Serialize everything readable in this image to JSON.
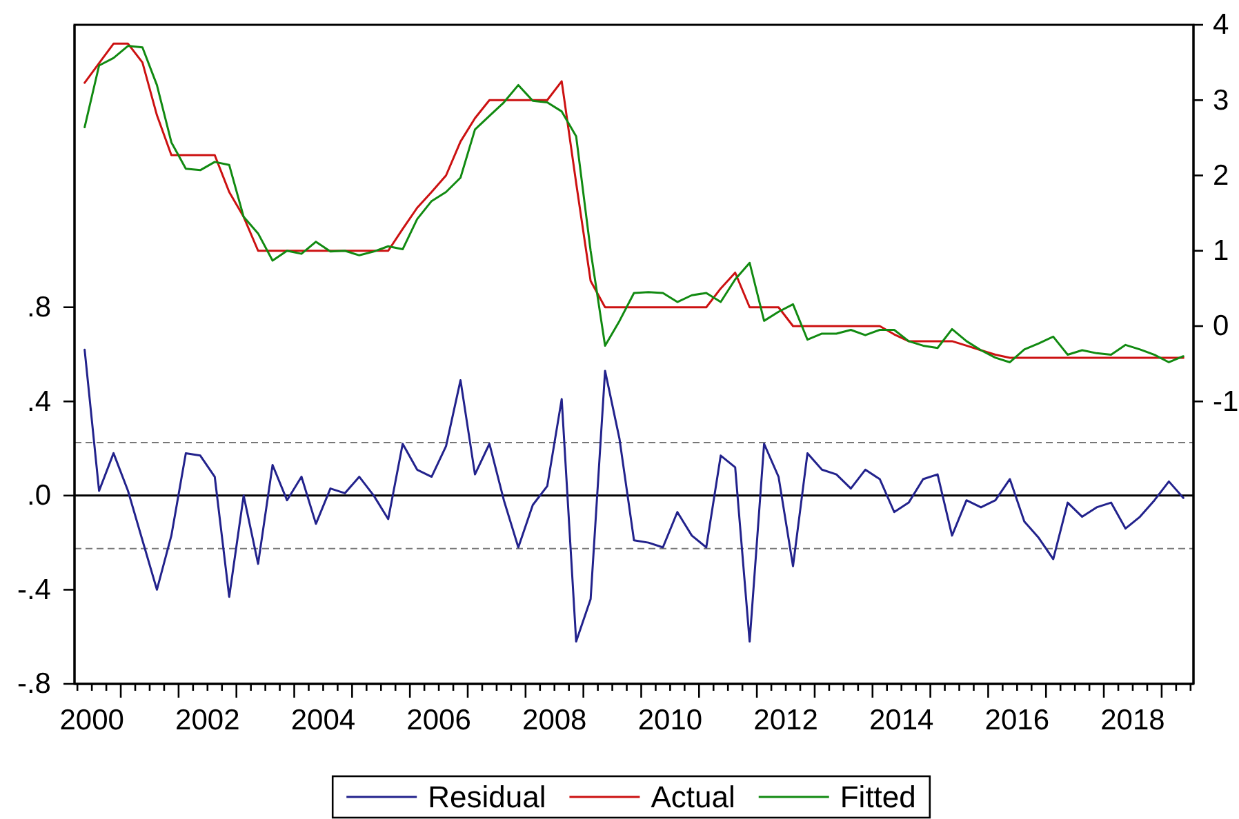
{
  "chart_data": {
    "type": "line",
    "x": [
      2000.375,
      2000.625,
      2000.875,
      2001.125,
      2001.375,
      2001.625,
      2001.875,
      2002.125,
      2002.375,
      2002.625,
      2002.875,
      2003.125,
      2003.375,
      2003.625,
      2003.875,
      2004.125,
      2004.375,
      2004.625,
      2004.875,
      2005.125,
      2005.375,
      2005.625,
      2005.875,
      2006.125,
      2006.375,
      2006.625,
      2006.875,
      2007.125,
      2007.375,
      2007.625,
      2007.875,
      2008.125,
      2008.375,
      2008.625,
      2008.875,
      2009.125,
      2009.375,
      2009.625,
      2009.875,
      2010.125,
      2010.375,
      2010.625,
      2010.875,
      2011.125,
      2011.375,
      2011.625,
      2011.875,
      2012.125,
      2012.375,
      2012.625,
      2012.875,
      2013.125,
      2013.375,
      2013.625,
      2013.875,
      2014.125,
      2014.375,
      2014.625,
      2014.875,
      2015.125,
      2015.375,
      2015.625,
      2015.875,
      2016.125,
      2016.375,
      2016.625,
      2016.875,
      2017.125,
      2017.375,
      2017.625,
      2017.875,
      2018.125,
      2018.375,
      2018.625,
      2018.875,
      2019.125,
      2019.375
    ],
    "series": [
      {
        "name": "Residual",
        "color": "#22228c",
        "axis": "y",
        "values": [
          0.62,
          0.02,
          0.18,
          0.02,
          -0.19,
          -0.4,
          -0.17,
          0.18,
          0.17,
          0.08,
          -0.43,
          0.0,
          -0.29,
          0.13,
          -0.02,
          0.08,
          -0.12,
          0.03,
          0.01,
          0.08,
          0.0,
          -0.1,
          0.22,
          0.11,
          0.08,
          0.21,
          0.49,
          0.09,
          0.22,
          -0.02,
          -0.22,
          -0.04,
          0.04,
          0.41,
          -0.62,
          -0.44,
          0.53,
          0.24,
          -0.19,
          -0.2,
          -0.22,
          -0.07,
          -0.17,
          -0.22,
          0.17,
          0.12,
          -0.62,
          0.22,
          0.08,
          -0.3,
          0.18,
          0.11,
          0.09,
          0.03,
          0.11,
          0.07,
          -0.07,
          -0.03,
          0.07,
          0.09,
          -0.17,
          -0.02,
          -0.05,
          -0.02,
          0.07,
          -0.11,
          -0.18,
          -0.27,
          -0.03,
          -0.09,
          -0.05,
          -0.03,
          -0.14,
          -0.09,
          -0.02,
          0.06,
          -0.01
        ]
      },
      {
        "name": "Actual",
        "color": "#cc1111",
        "axis": "y2",
        "values": [
          3.23,
          3.49,
          3.75,
          3.75,
          3.5,
          2.8,
          2.27,
          2.27,
          2.27,
          2.27,
          1.78,
          1.45,
          1.0,
          1.0,
          1.0,
          1.0,
          1.0,
          1.0,
          1.0,
          1.0,
          1.0,
          1.0,
          1.29,
          1.57,
          1.78,
          2.0,
          2.45,
          2.76,
          3.0,
          3.0,
          3.0,
          3.0,
          3.0,
          3.25,
          1.9,
          0.6,
          0.25,
          0.25,
          0.25,
          0.25,
          0.25,
          0.25,
          0.25,
          0.25,
          0.5,
          0.71,
          0.25,
          0.25,
          0.25,
          0.0,
          0.0,
          0.0,
          0.0,
          0.0,
          0.0,
          0.0,
          -0.11,
          -0.2,
          -0.2,
          -0.2,
          -0.2,
          -0.26,
          -0.32,
          -0.38,
          -0.42,
          -0.42,
          -0.42,
          -0.42,
          -0.42,
          -0.42,
          -0.42,
          -0.42,
          -0.42,
          -0.42,
          -0.42,
          -0.42,
          -0.42
        ]
      },
      {
        "name": "Fitted",
        "color": "#118a11",
        "axis": "y2",
        "values": [
          2.64,
          3.46,
          3.56,
          3.72,
          3.7,
          3.2,
          2.44,
          2.09,
          2.07,
          2.18,
          2.14,
          1.45,
          1.23,
          0.87,
          1.0,
          0.96,
          1.12,
          0.99,
          1.0,
          0.94,
          0.99,
          1.06,
          1.02,
          1.42,
          1.66,
          1.78,
          1.97,
          2.61,
          2.79,
          2.97,
          3.2,
          2.99,
          2.97,
          2.85,
          2.52,
          1.0,
          -0.26,
          0.07,
          0.44,
          0.45,
          0.44,
          0.32,
          0.41,
          0.44,
          0.32,
          0.62,
          0.84,
          0.07,
          0.19,
          0.29,
          -0.18,
          -0.1,
          -0.1,
          -0.05,
          -0.12,
          -0.05,
          -0.05,
          -0.2,
          -0.26,
          -0.29,
          -0.04,
          -0.2,
          -0.32,
          -0.42,
          -0.48,
          -0.31,
          -0.23,
          -0.14,
          -0.38,
          -0.32,
          -0.36,
          -0.38,
          -0.25,
          -0.31,
          -0.38,
          -0.48,
          -0.4
        ]
      }
    ],
    "xlim": [
      2000.2,
      2019.55
    ],
    "xticks": [
      {
        "value": 2000.25,
        "label": null
      },
      {
        "value": 2000.5,
        "label": "2000"
      },
      {
        "value": 2000.75,
        "label": null
      },
      {
        "value": 2001,
        "label": null
      },
      {
        "value": 2001.25,
        "label": null
      },
      {
        "value": 2001.5,
        "label": null
      },
      {
        "value": 2001.75,
        "label": null
      },
      {
        "value": 2002,
        "label": null
      },
      {
        "value": 2002.25,
        "label": null
      },
      {
        "value": 2002.5,
        "label": "2002"
      },
      {
        "value": 2002.75,
        "label": null
      },
      {
        "value": 2003,
        "label": null
      },
      {
        "value": 2003.25,
        "label": null
      },
      {
        "value": 2003.5,
        "label": null
      },
      {
        "value": 2003.75,
        "label": null
      },
      {
        "value": 2004,
        "label": null
      },
      {
        "value": 2004.25,
        "label": null
      },
      {
        "value": 2004.5,
        "label": "2004"
      },
      {
        "value": 2004.75,
        "label": null
      },
      {
        "value": 2005,
        "label": null
      },
      {
        "value": 2005.25,
        "label": null
      },
      {
        "value": 2005.5,
        "label": null
      },
      {
        "value": 2005.75,
        "label": null
      },
      {
        "value": 2006,
        "label": null
      },
      {
        "value": 2006.25,
        "label": null
      },
      {
        "value": 2006.5,
        "label": "2006"
      },
      {
        "value": 2006.75,
        "label": null
      },
      {
        "value": 2007,
        "label": null
      },
      {
        "value": 2007.25,
        "label": null
      },
      {
        "value": 2007.5,
        "label": null
      },
      {
        "value": 2007.75,
        "label": null
      },
      {
        "value": 2008,
        "label": null
      },
      {
        "value": 2008.25,
        "label": null
      },
      {
        "value": 2008.5,
        "label": "2008"
      },
      {
        "value": 2008.75,
        "label": null
      },
      {
        "value": 2009,
        "label": null
      },
      {
        "value": 2009.25,
        "label": null
      },
      {
        "value": 2009.5,
        "label": null
      },
      {
        "value": 2009.75,
        "label": null
      },
      {
        "value": 2010,
        "label": null
      },
      {
        "value": 2010.25,
        "label": null
      },
      {
        "value": 2010.5,
        "label": "2010"
      },
      {
        "value": 2010.75,
        "label": null
      },
      {
        "value": 2011,
        "label": null
      },
      {
        "value": 2011.25,
        "label": null
      },
      {
        "value": 2011.5,
        "label": null
      },
      {
        "value": 2011.75,
        "label": null
      },
      {
        "value": 2012,
        "label": null
      },
      {
        "value": 2012.25,
        "label": null
      },
      {
        "value": 2012.5,
        "label": "2012"
      },
      {
        "value": 2012.75,
        "label": null
      },
      {
        "value": 2013,
        "label": null
      },
      {
        "value": 2013.25,
        "label": null
      },
      {
        "value": 2013.5,
        "label": null
      },
      {
        "value": 2013.75,
        "label": null
      },
      {
        "value": 2014,
        "label": null
      },
      {
        "value": 2014.25,
        "label": null
      },
      {
        "value": 2014.5,
        "label": "2014"
      },
      {
        "value": 2014.75,
        "label": null
      },
      {
        "value": 2015,
        "label": null
      },
      {
        "value": 2015.25,
        "label": null
      },
      {
        "value": 2015.5,
        "label": null
      },
      {
        "value": 2015.75,
        "label": null
      },
      {
        "value": 2016,
        "label": null
      },
      {
        "value": 2016.25,
        "label": null
      },
      {
        "value": 2016.5,
        "label": "2016"
      },
      {
        "value": 2016.75,
        "label": null
      },
      {
        "value": 2017,
        "label": null
      },
      {
        "value": 2017.25,
        "label": null
      },
      {
        "value": 2017.5,
        "label": null
      },
      {
        "value": 2017.75,
        "label": null
      },
      {
        "value": 2018,
        "label": null
      },
      {
        "value": 2018.25,
        "label": null
      },
      {
        "value": 2018.5,
        "label": "2018"
      },
      {
        "value": 2018.75,
        "label": null
      },
      {
        "value": 2019,
        "label": null
      },
      {
        "value": 2019.25,
        "label": null
      },
      {
        "value": 2019.5,
        "label": null
      }
    ],
    "ylim": [
      -0.8,
      2.0
    ],
    "yticks": [
      {
        "value": -0.8,
        "label": "-.8"
      },
      {
        "value": -0.4,
        "label": "-.4"
      },
      {
        "value": 0,
        "label": ".0"
      },
      {
        "value": 0.4,
        "label": ".4"
      },
      {
        "value": 0.8,
        "label": ".8"
      }
    ],
    "y2lim": [
      -4.75,
      4
    ],
    "y2ticks": [
      -1,
      0,
      1,
      2,
      3,
      4
    ],
    "ref_lines": [
      {
        "axis": "y",
        "value": 0,
        "color": "#000000",
        "line_style": "solid"
      },
      {
        "axis": "y",
        "value": 0.225,
        "color": "#777777",
        "line_style": "dashed"
      },
      {
        "axis": "y",
        "value": -0.225,
        "color": "#777777",
        "line_style": "dashed"
      }
    ],
    "legend": "bottom"
  }
}
